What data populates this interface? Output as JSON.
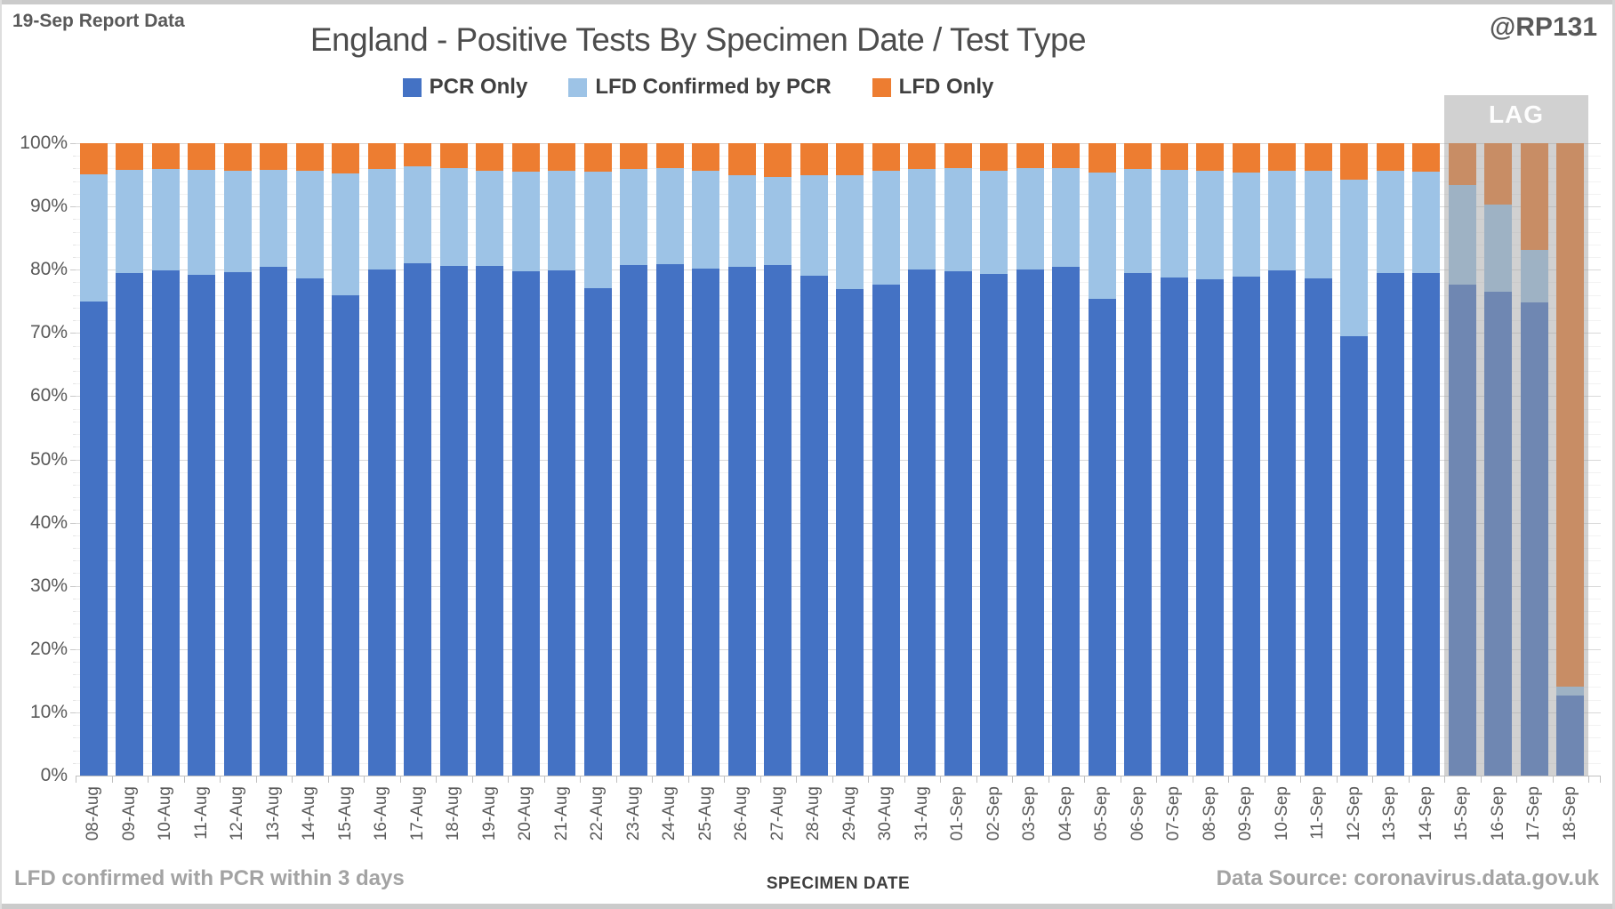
{
  "header": {
    "report_label": "19-Sep Report Data",
    "title": "England - Positive Tests By Specimen Date / Test Type",
    "handle": "@RP131"
  },
  "legend": [
    {
      "label": "PCR Only",
      "color": "#4472C4"
    },
    {
      "label": "LFD Confirmed by PCR",
      "color": "#9DC3E6"
    },
    {
      "label": "LFD Only",
      "color": "#ED7D31"
    }
  ],
  "lag": {
    "label": "LAG",
    "start_category": "15-Sep"
  },
  "footer": {
    "note": "LFD confirmed with PCR within 3 days",
    "xlabel": "SPECIMEN DATE",
    "source": "Data Source: coronavirus.data.gov.uk"
  },
  "chart_data": {
    "type": "bar",
    "stacked": true,
    "normalized_percent": true,
    "title": "England - Positive Tests By Specimen Date / Test Type",
    "xlabel": "SPECIMEN DATE",
    "ylabel": "",
    "ylim": [
      0,
      100
    ],
    "ytick_labels": [
      "0%",
      "10%",
      "20%",
      "30%",
      "40%",
      "50%",
      "60%",
      "70%",
      "80%",
      "90%",
      "100%"
    ],
    "grid": {
      "major_step": 10,
      "minor_step": 2,
      "major_color": "#d9d9d9",
      "minor_color": "#f2f2f2"
    },
    "legend_position": "top",
    "lag_start_index": 38,
    "categories": [
      "08-Aug",
      "09-Aug",
      "10-Aug",
      "11-Aug",
      "12-Aug",
      "13-Aug",
      "14-Aug",
      "15-Aug",
      "16-Aug",
      "17-Aug",
      "18-Aug",
      "19-Aug",
      "20-Aug",
      "21-Aug",
      "22-Aug",
      "23-Aug",
      "24-Aug",
      "25-Aug",
      "26-Aug",
      "27-Aug",
      "28-Aug",
      "29-Aug",
      "30-Aug",
      "31-Aug",
      "01-Sep",
      "02-Sep",
      "03-Sep",
      "04-Sep",
      "05-Sep",
      "06-Sep",
      "07-Sep",
      "08-Sep",
      "09-Sep",
      "10-Sep",
      "11-Sep",
      "12-Sep",
      "13-Sep",
      "14-Sep",
      "15-Sep",
      "16-Sep",
      "17-Sep",
      "18-Sep"
    ],
    "series": [
      {
        "name": "PCR Only",
        "color": "#4472C4",
        "values": [
          75.0,
          79.4,
          79.9,
          79.2,
          79.6,
          80.4,
          78.6,
          76.0,
          80.1,
          81.0,
          80.6,
          80.6,
          79.8,
          79.9,
          77.1,
          80.8,
          80.9,
          80.2,
          80.5,
          80.8,
          79.1,
          76.9,
          77.6,
          80.1,
          79.8,
          79.3,
          80.0,
          80.5,
          75.4,
          79.5,
          78.8,
          78.5,
          78.9,
          79.9,
          78.6,
          69.5,
          79.4,
          79.5,
          77.6,
          76.5,
          74.8,
          12.6
        ]
      },
      {
        "name": "LFD Confirmed by PCR",
        "color": "#9DC3E6",
        "values": [
          20.1,
          16.4,
          16.0,
          16.6,
          16.1,
          15.4,
          17.1,
          19.2,
          15.8,
          15.4,
          15.4,
          15.1,
          15.7,
          15.7,
          18.4,
          15.1,
          15.2,
          15.4,
          14.4,
          13.8,
          15.9,
          18.0,
          18.0,
          15.8,
          16.2,
          16.3,
          16.0,
          15.5,
          20.0,
          16.4,
          17.0,
          17.2,
          16.4,
          15.7,
          17.1,
          24.8,
          16.2,
          16.0,
          15.8,
          13.8,
          8.3,
          1.5
        ]
      },
      {
        "name": "LFD Only",
        "color": "#ED7D31",
        "values": [
          4.9,
          4.2,
          4.1,
          4.2,
          4.3,
          4.2,
          4.3,
          4.8,
          4.1,
          3.6,
          4.0,
          4.3,
          4.5,
          4.4,
          4.5,
          4.1,
          3.9,
          4.4,
          5.1,
          5.4,
          5.0,
          5.1,
          4.4,
          4.1,
          4.0,
          4.4,
          4.0,
          4.0,
          4.6,
          4.1,
          4.2,
          4.3,
          4.7,
          4.4,
          4.3,
          5.7,
          4.4,
          4.5,
          6.6,
          9.7,
          16.9,
          85.9
        ]
      }
    ]
  }
}
